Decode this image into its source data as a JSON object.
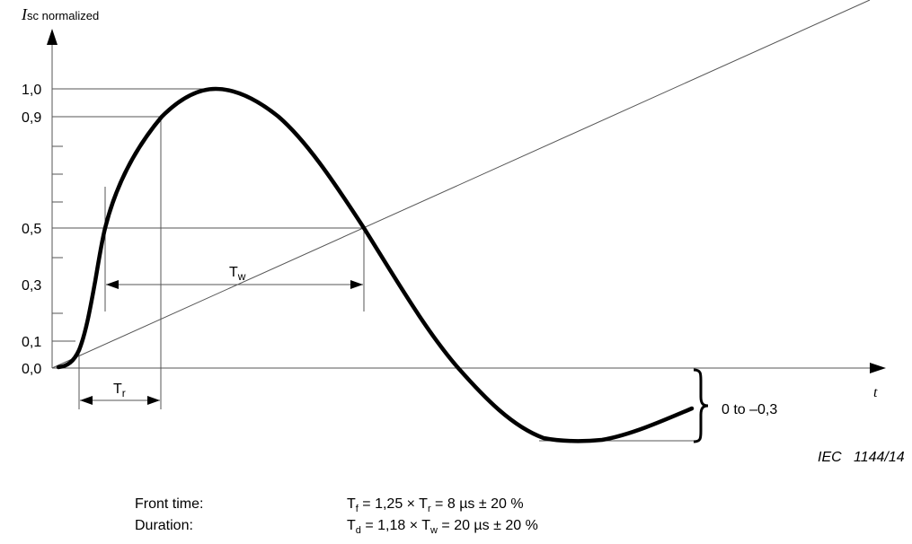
{
  "diagram": {
    "y_axis_label": {
      "symbol": "I",
      "subscript": "sc",
      "suffix": " normalized"
    },
    "x_axis_label": "t",
    "y_ticks": [
      "1,0",
      "0,9",
      "0,5",
      "0,3",
      "0,1",
      "0,0"
    ],
    "tw_label": {
      "main": "T",
      "sub": "w"
    },
    "tr_label": {
      "main": "T",
      "sub": "r"
    },
    "undershoot_label": "0 to –0,3",
    "figure_id": "IEC   1144/14"
  },
  "formulas": {
    "front_time_label": "Front time:",
    "duration_label": "Duration:",
    "front": {
      "t": "T",
      "f": "f",
      "mid": " = 1,25 × T",
      "r": "r",
      "end": " = 8 µs ± 20 %"
    },
    "duration": {
      "t": "T",
      "d": "d",
      "mid": " = 1,18 × T",
      "w": "w",
      "end": " = 20 µs ± 20 %"
    }
  }
}
